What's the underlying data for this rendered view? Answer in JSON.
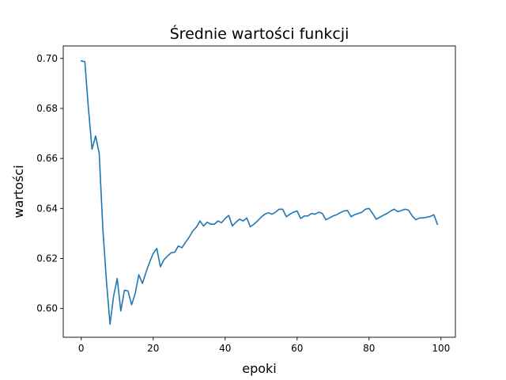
{
  "chart_data": {
    "type": "line",
    "title": "Średnie wartości funkcji",
    "xlabel": "epoki",
    "ylabel": "wartości",
    "xlim": [
      -5,
      104
    ],
    "ylim": [
      0.5885,
      0.705
    ],
    "xticks": [
      0,
      20,
      40,
      60,
      80,
      100
    ],
    "xtick_labels": [
      "0",
      "20",
      "40",
      "60",
      "80",
      "100"
    ],
    "yticks": [
      0.6,
      0.62,
      0.64,
      0.66,
      0.68,
      0.7
    ],
    "ytick_labels": [
      "0.60",
      "0.62",
      "0.64",
      "0.66",
      "0.68",
      "0.70"
    ],
    "grid": false,
    "legend": "none",
    "series": [
      {
        "color": "#1f77b4",
        "x": [
          0,
          1,
          2,
          3,
          4,
          5,
          6,
          7,
          8,
          9,
          10,
          11,
          12,
          13,
          14,
          15,
          16,
          17,
          18,
          19,
          20,
          21,
          22,
          23,
          24,
          25,
          26,
          27,
          28,
          29,
          30,
          31,
          32,
          33,
          34,
          35,
          36,
          37,
          38,
          39,
          40,
          41,
          42,
          43,
          44,
          45,
          46,
          47,
          48,
          49,
          50,
          51,
          52,
          53,
          54,
          55,
          56,
          57,
          58,
          59,
          60,
          61,
          62,
          63,
          64,
          65,
          66,
          67,
          68,
          69,
          70,
          71,
          72,
          73,
          74,
          75,
          76,
          77,
          78,
          79,
          80,
          81,
          82,
          83,
          84,
          85,
          86,
          87,
          88,
          89,
          90,
          91,
          92,
          93,
          94,
          95,
          96,
          97,
          98,
          99
        ],
        "values": [
          0.699,
          0.6987,
          0.68,
          0.6637,
          0.669,
          0.662,
          0.632,
          0.611,
          0.5937,
          0.605,
          0.612,
          0.599,
          0.6073,
          0.607,
          0.6015,
          0.606,
          0.6135,
          0.61,
          0.6145,
          0.6185,
          0.622,
          0.624,
          0.6167,
          0.6195,
          0.621,
          0.6223,
          0.6225,
          0.625,
          0.6243,
          0.6265,
          0.6285,
          0.631,
          0.6325,
          0.635,
          0.633,
          0.6345,
          0.6337,
          0.6337,
          0.635,
          0.6343,
          0.636,
          0.6372,
          0.633,
          0.6345,
          0.6357,
          0.635,
          0.6362,
          0.6327,
          0.6337,
          0.635,
          0.6365,
          0.6377,
          0.6383,
          0.6377,
          0.6385,
          0.6397,
          0.6397,
          0.6367,
          0.6377,
          0.6385,
          0.639,
          0.636,
          0.637,
          0.637,
          0.638,
          0.6377,
          0.6385,
          0.638,
          0.6355,
          0.6362,
          0.637,
          0.6375,
          0.6383,
          0.639,
          0.6392,
          0.6367,
          0.6375,
          0.638,
          0.6385,
          0.6397,
          0.64,
          0.638,
          0.6357,
          0.6365,
          0.6373,
          0.638,
          0.639,
          0.6397,
          0.6387,
          0.6392,
          0.6397,
          0.6393,
          0.637,
          0.6355,
          0.6362,
          0.6362,
          0.6365,
          0.6368,
          0.6375,
          0.6337
        ]
      }
    ]
  }
}
